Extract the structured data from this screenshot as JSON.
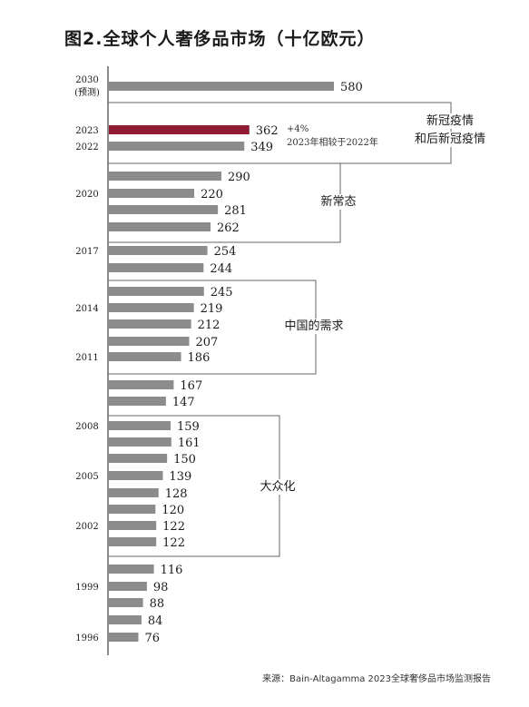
{
  "chart_data": {
    "type": "bar",
    "orientation": "horizontal",
    "title": "图2.全球个人奢侈品市场（十亿欧元）",
    "source": "来源：Bain-Altagamma 2023全球奢侈品市场监测报告",
    "bars": [
      {
        "value": 580,
        "year": "2030",
        "year_note": "(预测)"
      },
      {
        "value": 362,
        "year": "2023",
        "highlight": true
      },
      {
        "value": 349,
        "year": "2022"
      },
      {
        "value": 290,
        "year": ""
      },
      {
        "value": 220,
        "year": "2020"
      },
      {
        "value": 281,
        "year": ""
      },
      {
        "value": 262,
        "year": ""
      },
      {
        "value": 254,
        "year": "2017"
      },
      {
        "value": 244,
        "year": ""
      },
      {
        "value": 245,
        "year": ""
      },
      {
        "value": 219,
        "year": "2014"
      },
      {
        "value": 212,
        "year": ""
      },
      {
        "value": 207,
        "year": ""
      },
      {
        "value": 186,
        "year": "2011"
      },
      {
        "value": 167,
        "year": ""
      },
      {
        "value": 147,
        "year": ""
      },
      {
        "value": 159,
        "year": "2008"
      },
      {
        "value": 161,
        "year": ""
      },
      {
        "value": 150,
        "year": ""
      },
      {
        "value": 139,
        "year": "2005"
      },
      {
        "value": 128,
        "year": ""
      },
      {
        "value": 120,
        "year": ""
      },
      {
        "value": 122,
        "year": "2002"
      },
      {
        "value": 122,
        "year": ""
      },
      {
        "value": 116,
        "year": ""
      },
      {
        "value": 98,
        "year": "1999"
      },
      {
        "value": 88,
        "year": ""
      },
      {
        "value": 84,
        "year": ""
      },
      {
        "value": 76,
        "year": "1996"
      }
    ],
    "annotation": {
      "growth": "+4%",
      "comparison": "2023年相较于2022年"
    },
    "brackets": [
      {
        "label_lines": [
          "新冠疫情",
          "和后新冠疫情"
        ]
      },
      {
        "label_lines": [
          "新常态"
        ]
      },
      {
        "label_lines": [
          "中国的需求"
        ]
      },
      {
        "label_lines": [
          "大众化"
        ]
      }
    ],
    "colors": {
      "bar": "#8c8c8c",
      "highlight": "#8e1b31",
      "bracket": "#666666",
      "axis": "#1a1a1a"
    }
  }
}
